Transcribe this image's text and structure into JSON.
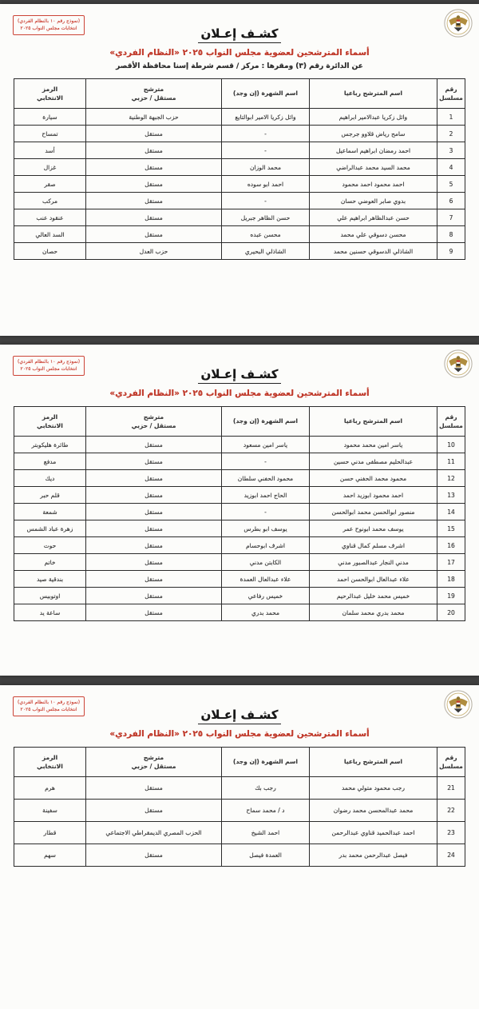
{
  "doc": {
    "stamp_line1": "(نموذج رقم ١٠ بالنظام الفردي)",
    "stamp_line2": "انتخابات مجلس النواب ٢٠٢٥",
    "title": "كشـف إعـلان",
    "subtitle": "أسماء المترشحين لعضوية مجلس النواب ٢٠٢٥ «النظام الفردي»",
    "district_line": "عن الدائرة رقم (٣)   ومقرها : مركز / قسم شرطة  إسنا    محافظة الأقصر",
    "headers": {
      "serial": "رقم\nمسلسل",
      "name": "اسم المترشح رباعيا",
      "famous": "اسم الشهرة (إن وجد)",
      "party": "مترشح\nمستقل / حزبي",
      "symbol": "الرمز\nالانتخابي"
    }
  },
  "pages": [
    {
      "rows": [
        {
          "serial": "1",
          "name": "وائل زكريا عبدالامير ابراهيم",
          "famous": "وائل زكريا الامير ابوالتايع",
          "party": "حزب الجبهة الوطنية",
          "symbol": "سيارة"
        },
        {
          "serial": "2",
          "name": "سامح رياض قلاوو جرجس",
          "famous": "-",
          "party": "مستقل",
          "symbol": "تمساح"
        },
        {
          "serial": "3",
          "name": "احمد رمضان ابراهيم اسماعيل",
          "famous": "-",
          "party": "مستقل",
          "symbol": "أسد"
        },
        {
          "serial": "4",
          "name": "محمد السيد محمد عبدالراضي",
          "famous": "محمد الوزان",
          "party": "مستقل",
          "symbol": "غزال"
        },
        {
          "serial": "5",
          "name": "احمد محمود احمد محمود",
          "famous": "احمد ابو سوده",
          "party": "مستقل",
          "symbol": "صقر"
        },
        {
          "serial": "6",
          "name": "بدوي صابر العوضي حسان",
          "famous": "-",
          "party": "مستقل",
          "symbol": "مركب"
        },
        {
          "serial": "7",
          "name": "حسن عبدالظاهر ابراهيم علي",
          "famous": "حسن الظاهر جبريل",
          "party": "مستقل",
          "symbol": "عنقود عنب"
        },
        {
          "serial": "8",
          "name": "محسن دسوقي علي محمد",
          "famous": "محسن عبده",
          "party": "مستقل",
          "symbol": "السد العالي"
        },
        {
          "serial": "9",
          "name": "الشاذلي الدسوقي حسنين محمد",
          "famous": "الشاذلي البحيري",
          "party": "حزب العدل",
          "symbol": "حصان"
        }
      ]
    },
    {
      "rows": [
        {
          "serial": "10",
          "name": "ياسر امين محمد محمود",
          "famous": "ياسر امين مسعود",
          "party": "مستقل",
          "symbol": "طائرة هليكوبتر"
        },
        {
          "serial": "11",
          "name": "عبدالحليم مصطفى مدني حسين",
          "famous": "-",
          "party": "مستقل",
          "symbol": "مدفع"
        },
        {
          "serial": "12",
          "name": "محمود محمد الحفني حسن",
          "famous": "محمود الحفني سلطان",
          "party": "مستقل",
          "symbol": "ديك"
        },
        {
          "serial": "13",
          "name": "احمد محمود ابوزيد احمد",
          "famous": "الحاج احمد ابوزيد",
          "party": "مستقل",
          "symbol": "قلم حبر"
        },
        {
          "serial": "14",
          "name": "منصور ابوالحسن محمد ابوالحسن",
          "famous": "-",
          "party": "مستقل",
          "symbol": "شمعة"
        },
        {
          "serial": "15",
          "name": "يوسف محمد ابونوح عمر",
          "famous": "يوسف ابو بطرس",
          "party": "مستقل",
          "symbol": "زهرة عباد الشمس"
        },
        {
          "serial": "16",
          "name": "اشرف مسلم كمال قناوي",
          "famous": "اشرف ابوحسام",
          "party": "مستقل",
          "symbol": "حوت"
        },
        {
          "serial": "17",
          "name": "مدني النجار عبدالصبور مدني",
          "famous": "الكابتن مدني",
          "party": "مستقل",
          "symbol": "خاتم"
        },
        {
          "serial": "18",
          "name": "علاء عبدالعال ابوالحسن احمد",
          "famous": "علاء عبدالعال العمدة",
          "party": "مستقل",
          "symbol": "بندقية صيد"
        },
        {
          "serial": "19",
          "name": "خميس محمد خليل عبدالرحيم",
          "famous": "خميس رفاعي",
          "party": "مستقل",
          "symbol": "اوتوبيس"
        },
        {
          "serial": "20",
          "name": "محمد بدري محمد سلمان",
          "famous": "محمد بدري",
          "party": "مستقل",
          "symbol": "ساعة يد"
        }
      ]
    },
    {
      "rows": [
        {
          "serial": "21",
          "name": "رجب محمود متولي محمد",
          "famous": "رجب بك",
          "party": "مستقل",
          "symbol": "هرم"
        },
        {
          "serial": "22",
          "name": "محمد عبدالمحسن محمد رضوان",
          "famous": "د / محمد سماح",
          "party": "مستقل",
          "symbol": "سفينة"
        },
        {
          "serial": "23",
          "name": "احمد عبدالحميد قناوي عبدالرحمن",
          "famous": "احمد الشيخ",
          "party": "الحزب المصري الديمقراطي الاجتماعي",
          "symbol": "قطار"
        },
        {
          "serial": "24",
          "name": "فيصل عبدالرحمن محمد بدر",
          "famous": "العمدة فيصل",
          "party": "مستقل",
          "symbol": "سهم"
        }
      ]
    }
  ]
}
